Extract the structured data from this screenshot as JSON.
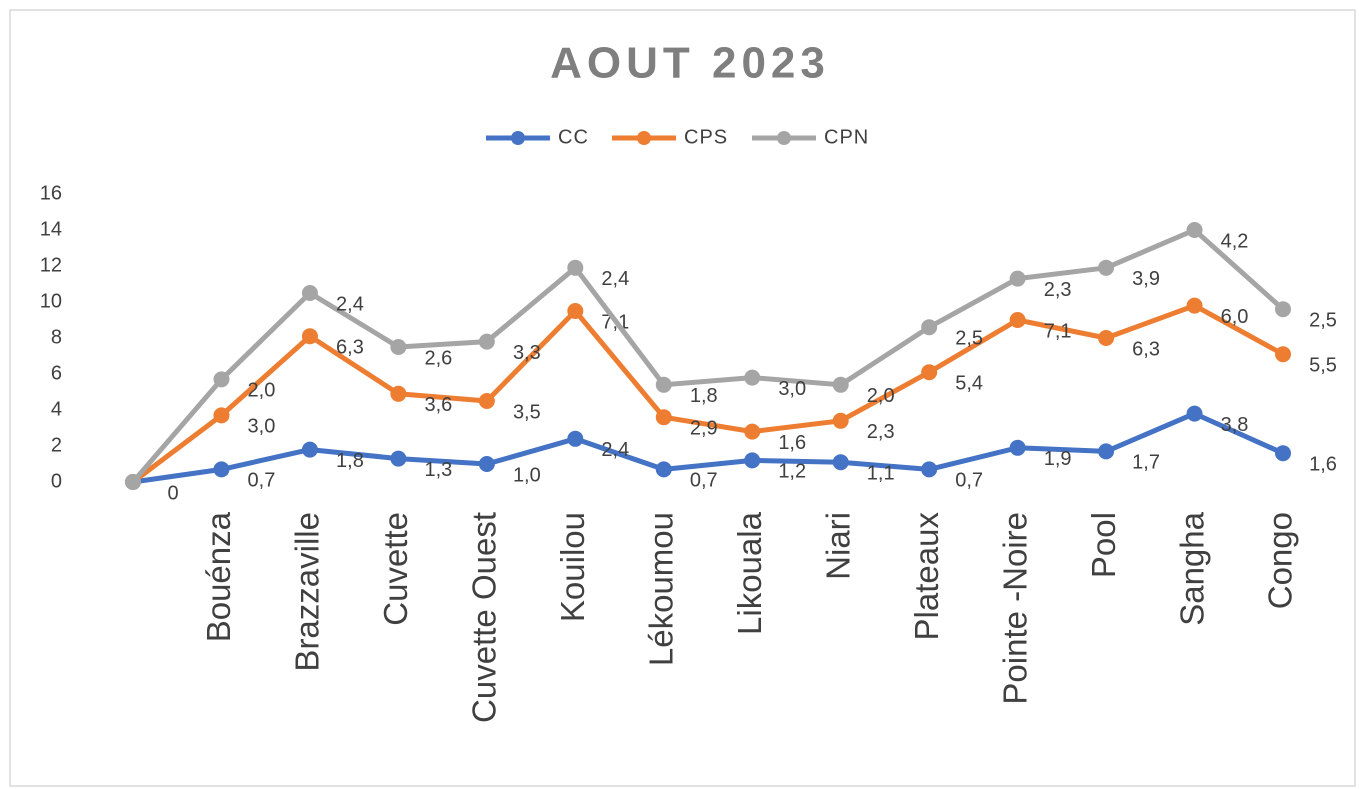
{
  "chart_data": {
    "type": "line",
    "stacked": true,
    "title": "AOUT 2023",
    "categories": [
      null,
      "Bouénza",
      "Brazzaville",
      "Cuvette",
      "Cuvette Ouest",
      "Kouilou",
      "Lékoumou",
      "Likouala",
      "Niari",
      "Plateaux",
      "Pointe -Noire",
      "Pool",
      "Sangha",
      "Congo"
    ],
    "series": [
      {
        "name": "CC",
        "color": "#4472c4",
        "values": [
          0,
          0.7,
          1.8,
          1.3,
          1.0,
          2.4,
          0.7,
          1.2,
          1.1,
          0.7,
          1.9,
          1.7,
          3.8,
          1.6
        ],
        "value_labels": [
          "0",
          "0,7",
          "1,8",
          "1,3",
          "1,0",
          "2,4",
          "0,7",
          "1,2",
          "1,1",
          "0,7",
          "1,9",
          "1,7",
          "3,8",
          "1,6"
        ]
      },
      {
        "name": "CPS",
        "color": "#ed7d31",
        "values": [
          0,
          3.0,
          6.3,
          3.6,
          3.5,
          7.1,
          2.9,
          1.6,
          2.3,
          5.4,
          7.1,
          6.3,
          6.0,
          5.5
        ],
        "value_labels": [
          null,
          "3,0",
          "6,3",
          "3,6",
          "3,5",
          "7,1",
          "2,9",
          "1,6",
          "2,3",
          "5,4",
          "7,1",
          "6,3",
          "6,0",
          "5,5"
        ]
      },
      {
        "name": "CPN",
        "color": "#a5a5a5",
        "values": [
          0,
          2.0,
          2.4,
          2.6,
          3.3,
          2.4,
          1.8,
          3.0,
          2.0,
          2.5,
          2.3,
          3.9,
          4.2,
          2.5
        ],
        "value_labels": [
          null,
          "2,0",
          "2,4",
          "2,6",
          "3,3",
          "2,4",
          "1,8",
          "3,0",
          "2,0",
          "2,5",
          "2,3",
          "3,9",
          "4,2",
          "2,5"
        ]
      }
    ],
    "ylim": [
      0,
      16
    ],
    "yticks": [
      0,
      2,
      4,
      6,
      8,
      10,
      12,
      14,
      16
    ],
    "grid": false,
    "legend": "top"
  }
}
